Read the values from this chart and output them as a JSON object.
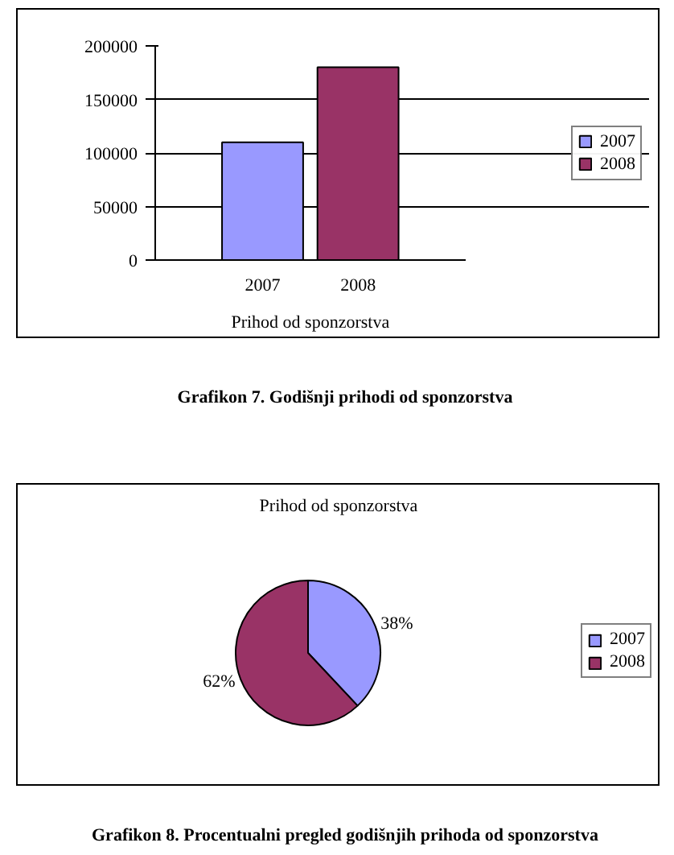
{
  "chart_data": [
    {
      "type": "bar",
      "categories": [
        "Prihod od sponzorstva"
      ],
      "series": [
        {
          "name": "2007",
          "color": "#9999ff",
          "values": [
            110000
          ]
        },
        {
          "name": "2008",
          "color": "#993366",
          "values": [
            180000
          ]
        }
      ],
      "ylim": [
        0,
        200000
      ],
      "yticks": [
        0,
        50000,
        100000,
        150000,
        200000
      ],
      "grid": "y",
      "legend": "right",
      "annotations": [
        "Grafikon 7. Godišnji prihodi od sponzorstva"
      ]
    },
    {
      "type": "pie",
      "title": "Prihod od sponzorstva",
      "categories": [
        "2007",
        "2008"
      ],
      "values": [
        38,
        62
      ],
      "colors": [
        "#9999ff",
        "#993366"
      ],
      "value_labels": [
        "38%",
        "62%"
      ],
      "legend": "right",
      "annotations": [
        "Grafikon 8. Procentualni pregled godišnjih prihoda od sponzorstva"
      ]
    }
  ]
}
